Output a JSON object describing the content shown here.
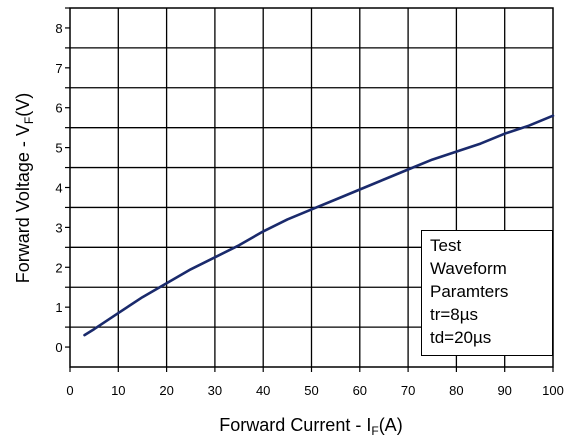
{
  "chart_data": {
    "type": "line",
    "title": "",
    "xlabel": {
      "main": "Forward Current - I",
      "sub": "F",
      "unit": "(A)"
    },
    "ylabel": {
      "main": "Forward Voltage - V",
      "sub": "F",
      "unit": "(V)"
    },
    "xlim": [
      0,
      100
    ],
    "ylim": [
      -0.5,
      8.5
    ],
    "x_ticks": [
      "0",
      "10",
      "20",
      "30",
      "40",
      "50",
      "60",
      "70",
      "80",
      "90",
      "100"
    ],
    "y_ticks": [
      "0",
      "1",
      "2",
      "3",
      "4",
      "5",
      "6",
      "7",
      "8"
    ],
    "grid": true,
    "series": [
      {
        "color": "#1a2a6c",
        "x": [
          3,
          5,
          10,
          15,
          20,
          25,
          30,
          35,
          40,
          45,
          50,
          55,
          60,
          65,
          70,
          75,
          80,
          85,
          90,
          95,
          100
        ],
        "y": [
          0.3,
          0.45,
          0.85,
          1.25,
          1.6,
          1.95,
          2.25,
          2.55,
          2.9,
          3.2,
          3.45,
          3.7,
          3.95,
          4.2,
          4.45,
          4.7,
          4.9,
          5.1,
          5.35,
          5.55,
          5.8
        ]
      }
    ],
    "legend_box": [
      "Test",
      "Waveform",
      "Paramters",
      "tr=8µs",
      "td=20µs"
    ]
  }
}
